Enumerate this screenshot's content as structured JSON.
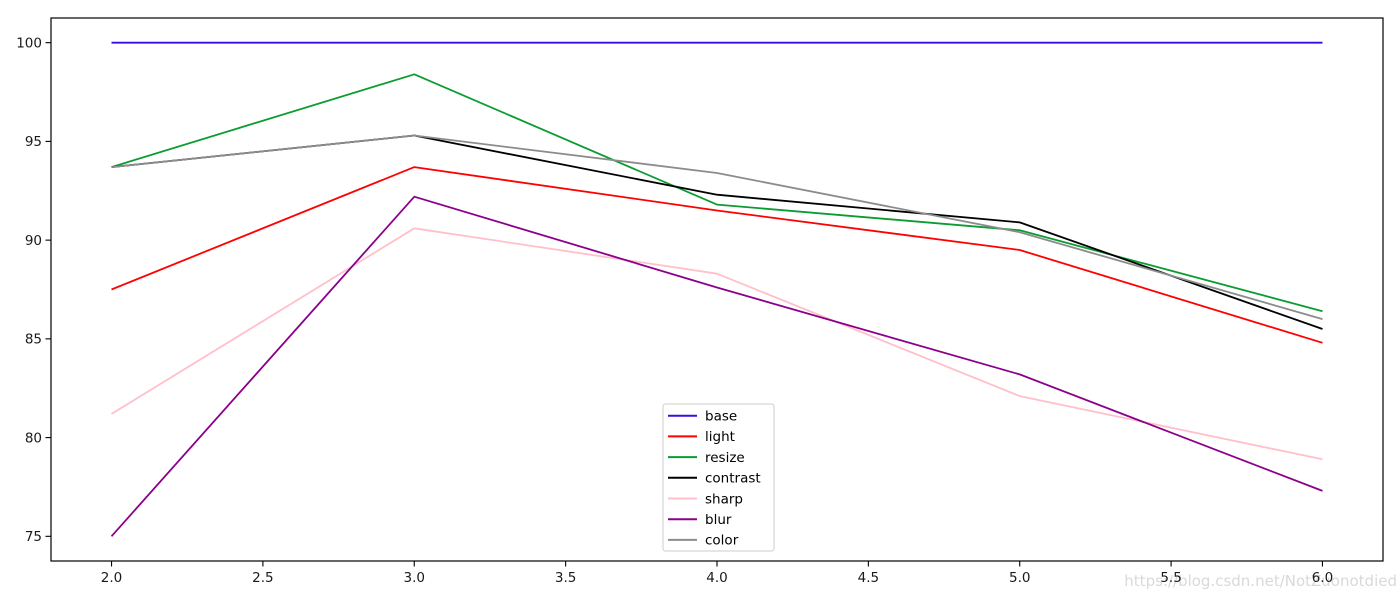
{
  "watermark": "https://blog.csdn.net/NotZuonotdied",
  "chart_data": {
    "type": "line",
    "title": "",
    "xlabel": "",
    "ylabel": "",
    "grid": false,
    "x": [
      2,
      3,
      4,
      5,
      6
    ],
    "series": [
      {
        "name": "base",
        "color": "#3a0ce0",
        "values": [
          100,
          100,
          100,
          100,
          100
        ]
      },
      {
        "name": "light",
        "color": "#ff0000",
        "values": [
          87.5,
          93.7,
          91.5,
          89.5,
          84.8
        ]
      },
      {
        "name": "resize",
        "color": "#0b9c31",
        "values": [
          93.7,
          98.4,
          91.8,
          90.5,
          86.4
        ]
      },
      {
        "name": "contrast",
        "color": "#000000",
        "values": [
          93.7,
          95.3,
          92.3,
          90.9,
          85.5
        ]
      },
      {
        "name": "sharp",
        "color": "#ffc0cb",
        "values": [
          81.2,
          90.6,
          88.3,
          82.1,
          78.9
        ]
      },
      {
        "name": "blur",
        "color": "#8b008b",
        "values": [
          75.0,
          92.2,
          87.6,
          83.2,
          77.3
        ]
      },
      {
        "name": "color",
        "color": "#8c8c8c",
        "values": [
          93.7,
          95.3,
          93.4,
          90.4,
          86.0
        ]
      }
    ],
    "xticks": [
      2.0,
      2.5,
      3.0,
      3.5,
      4.0,
      4.5,
      5.0,
      5.5,
      6.0
    ],
    "xtick_labels": [
      "2.0",
      "2.5",
      "3.0",
      "3.5",
      "4.0",
      "4.5",
      "5.0",
      "5.5",
      "6.0"
    ],
    "yticks": [
      75,
      80,
      85,
      90,
      95,
      100
    ],
    "ytick_labels": [
      "75",
      "80",
      "85",
      "90",
      "95",
      "100"
    ],
    "xlim": [
      1.8,
      6.2
    ],
    "ylim": [
      73.75,
      101.25
    ],
    "legend_position": "lower center-left",
    "colors": {
      "axis": "#000000",
      "tick_label": "#1a1a1a",
      "legend_border": "#cccccc",
      "legend_bg": "#ffffff",
      "watermark": "#d9d9d9",
      "background": "#ffffff"
    }
  }
}
